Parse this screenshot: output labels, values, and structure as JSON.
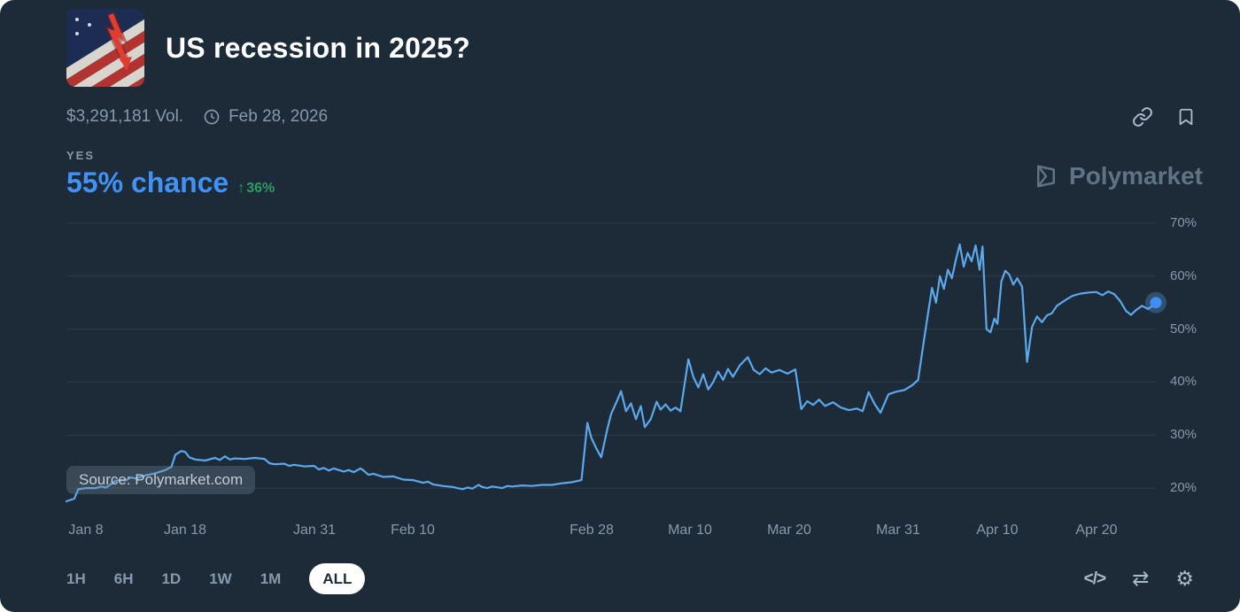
{
  "colors": {
    "background": "#1d2b39",
    "text-primary": "#ffffff",
    "text-muted": "#8699ab",
    "accent-blue": "#4292f5",
    "line-blue": "#5ca8ea",
    "positive-green": "#2d9c64",
    "gridline": "#2e3c4b",
    "pill-bg": "#ffffff",
    "pill-text": "#1d2b39"
  },
  "header": {
    "title": "US recession in 2025?",
    "volume": "$3,291,181 Vol.",
    "end_date": "Feb 28, 2026"
  },
  "outcome": {
    "label": "YES",
    "chance": "55% chance",
    "change_arrow": "↑",
    "change": "36%"
  },
  "watermark": {
    "brand": "Polymarket",
    "source": "Source: Polymarket.com"
  },
  "chart_data": {
    "type": "line",
    "title": "US recession in 2025? — YES price history",
    "x_range": [
      0,
      110
    ],
    "y_range": [
      15.5,
      71.5
    ],
    "grid": true,
    "y_ticks": [
      20,
      30,
      40,
      50,
      60,
      70
    ],
    "y_tick_suffix": "%",
    "x_ticks": [
      {
        "day": 2,
        "label": "Jan 8"
      },
      {
        "day": 12,
        "label": "Jan 18"
      },
      {
        "day": 25,
        "label": "Jan 31"
      },
      {
        "day": 35,
        "label": "Feb 10"
      },
      {
        "day": 53,
        "label": "Feb 28"
      },
      {
        "day": 63,
        "label": "Mar 10"
      },
      {
        "day": 73,
        "label": "Mar 20"
      },
      {
        "day": 84,
        "label": "Mar 31"
      },
      {
        "day": 94,
        "label": "Apr 10"
      },
      {
        "day": 104,
        "label": "Apr 20"
      }
    ],
    "series": [
      {
        "name": "Yes",
        "color": "#5ca8ea",
        "points": [
          [
            0,
            17.5
          ],
          [
            0.8,
            18
          ],
          [
            1.2,
            19.8
          ],
          [
            2,
            20
          ],
          [
            3,
            20
          ],
          [
            3.5,
            20.3
          ],
          [
            4,
            20.1
          ],
          [
            5,
            21.4
          ],
          [
            6,
            21.5
          ],
          [
            6.5,
            22
          ],
          [
            7,
            21.8
          ],
          [
            8,
            22.4
          ],
          [
            9,
            22.8
          ],
          [
            10,
            23.4
          ],
          [
            10.6,
            24
          ],
          [
            11,
            26.3
          ],
          [
            11.6,
            27
          ],
          [
            12,
            26.8
          ],
          [
            12.4,
            25.8
          ],
          [
            13,
            25.4
          ],
          [
            14,
            25.2
          ],
          [
            15,
            25.7
          ],
          [
            15.5,
            25.3
          ],
          [
            16,
            26
          ],
          [
            16.5,
            25.4
          ],
          [
            17,
            25.6
          ],
          [
            18,
            25.5
          ],
          [
            19,
            25.7
          ],
          [
            20,
            25.5
          ],
          [
            20.5,
            24.7
          ],
          [
            21,
            24.5
          ],
          [
            22,
            24.6
          ],
          [
            22.5,
            24.2
          ],
          [
            23,
            24.4
          ],
          [
            24,
            24.1
          ],
          [
            25,
            24.2
          ],
          [
            25.5,
            23.5
          ],
          [
            26,
            23.8
          ],
          [
            26.5,
            23.3
          ],
          [
            27,
            23.7
          ],
          [
            28,
            23.1
          ],
          [
            28.5,
            23.4
          ],
          [
            29,
            23
          ],
          [
            29.7,
            23.7
          ],
          [
            30,
            23.3
          ],
          [
            30.5,
            22.5
          ],
          [
            31,
            22.7
          ],
          [
            32,
            22.1
          ],
          [
            33,
            22.2
          ],
          [
            34,
            21.6
          ],
          [
            35,
            21.5
          ],
          [
            36,
            21
          ],
          [
            36.5,
            21.2
          ],
          [
            37,
            20.7
          ],
          [
            38,
            20.4
          ],
          [
            39,
            20.2
          ],
          [
            40,
            19.8
          ],
          [
            40.5,
            20.1
          ],
          [
            41,
            19.9
          ],
          [
            41.6,
            20.6
          ],
          [
            42,
            20.2
          ],
          [
            42.5,
            20
          ],
          [
            43,
            20.3
          ],
          [
            44,
            20
          ],
          [
            44.5,
            20.4
          ],
          [
            45,
            20.3
          ],
          [
            46,
            20.5
          ],
          [
            47,
            20.4
          ],
          [
            48,
            20.6
          ],
          [
            49,
            20.6
          ],
          [
            50,
            20.9
          ],
          [
            51,
            21.1
          ],
          [
            52,
            21.5
          ],
          [
            52.6,
            32.3
          ],
          [
            53,
            29.5
          ],
          [
            53.5,
            27.5
          ],
          [
            54,
            25.8
          ],
          [
            54.6,
            31
          ],
          [
            55,
            34
          ],
          [
            55.6,
            36.5
          ],
          [
            56,
            38.3
          ],
          [
            56.5,
            34.5
          ],
          [
            57,
            36
          ],
          [
            57.5,
            33
          ],
          [
            58,
            35.5
          ],
          [
            58.4,
            31.5
          ],
          [
            59,
            33
          ],
          [
            59.6,
            36.3
          ],
          [
            60,
            34.8
          ],
          [
            60.5,
            35.8
          ],
          [
            61,
            34.6
          ],
          [
            61.5,
            35.2
          ],
          [
            62,
            34.5
          ],
          [
            62.8,
            44.3
          ],
          [
            63.3,
            41
          ],
          [
            63.8,
            39
          ],
          [
            64.3,
            41.5
          ],
          [
            64.8,
            38.6
          ],
          [
            65.3,
            40
          ],
          [
            65.8,
            42
          ],
          [
            66.3,
            40.4
          ],
          [
            66.8,
            42.5
          ],
          [
            67.3,
            41
          ],
          [
            68,
            43.2
          ],
          [
            68.8,
            44.7
          ],
          [
            69.4,
            42.3
          ],
          [
            70,
            41.5
          ],
          [
            70.6,
            42.6
          ],
          [
            71.2,
            41.8
          ],
          [
            72,
            42.3
          ],
          [
            72.8,
            41.6
          ],
          [
            73.6,
            42.4
          ],
          [
            74.2,
            34.9
          ],
          [
            74.8,
            36.4
          ],
          [
            75.4,
            35.7
          ],
          [
            76,
            36.7
          ],
          [
            76.6,
            35.5
          ],
          [
            77.4,
            36.2
          ],
          [
            78.2,
            35.2
          ],
          [
            79,
            34.7
          ],
          [
            79.8,
            35
          ],
          [
            80.4,
            34.5
          ],
          [
            81,
            38.1
          ],
          [
            81.6,
            35.9
          ],
          [
            82.2,
            34.2
          ],
          [
            83,
            37.7
          ],
          [
            83.8,
            38.2
          ],
          [
            84.6,
            38.5
          ],
          [
            85.4,
            39.4
          ],
          [
            86,
            40.4
          ],
          [
            86.5,
            46.8
          ],
          [
            87,
            53
          ],
          [
            87.4,
            57.8
          ],
          [
            87.8,
            55
          ],
          [
            88.2,
            60
          ],
          [
            88.6,
            57.6
          ],
          [
            89,
            61.2
          ],
          [
            89.4,
            59.6
          ],
          [
            89.8,
            63
          ],
          [
            90.2,
            66
          ],
          [
            90.6,
            61.8
          ],
          [
            91,
            64.4
          ],
          [
            91.4,
            62.8
          ],
          [
            91.8,
            65.8
          ],
          [
            92.2,
            61.2
          ],
          [
            92.5,
            65.6
          ],
          [
            92.9,
            50
          ],
          [
            93.3,
            49.4
          ],
          [
            93.7,
            52
          ],
          [
            94,
            51
          ],
          [
            94.4,
            59
          ],
          [
            94.8,
            61
          ],
          [
            95.2,
            60.3
          ],
          [
            95.6,
            58.4
          ],
          [
            96,
            59.6
          ],
          [
            96.5,
            58
          ],
          [
            97,
            43.8
          ],
          [
            97.5,
            50.4
          ],
          [
            98,
            52.4
          ],
          [
            98.5,
            51.3
          ],
          [
            99,
            52.6
          ],
          [
            99.5,
            53
          ],
          [
            100,
            54.4
          ],
          [
            100.8,
            55.4
          ],
          [
            101.6,
            56.3
          ],
          [
            102.4,
            56.7
          ],
          [
            103.2,
            56.9
          ],
          [
            104,
            57
          ],
          [
            104.6,
            56.4
          ],
          [
            105.2,
            57.1
          ],
          [
            105.8,
            56.6
          ],
          [
            106.4,
            55.3
          ],
          [
            107,
            53.4
          ],
          [
            107.5,
            52.7
          ],
          [
            108,
            53.6
          ],
          [
            108.6,
            54.4
          ],
          [
            109.2,
            53.8
          ],
          [
            109.6,
            54.3
          ],
          [
            110,
            55
          ]
        ]
      }
    ],
    "end_marker_value": 55
  },
  "toolbar": {
    "ranges": [
      {
        "label": "1H",
        "selected": false
      },
      {
        "label": "6H",
        "selected": false
      },
      {
        "label": "1D",
        "selected": false
      },
      {
        "label": "1W",
        "selected": false
      },
      {
        "label": "1M",
        "selected": false
      },
      {
        "label": "ALL",
        "selected": true
      }
    ],
    "icons": {
      "code": "</>",
      "swap": "⇄",
      "settings": "⚙"
    }
  }
}
